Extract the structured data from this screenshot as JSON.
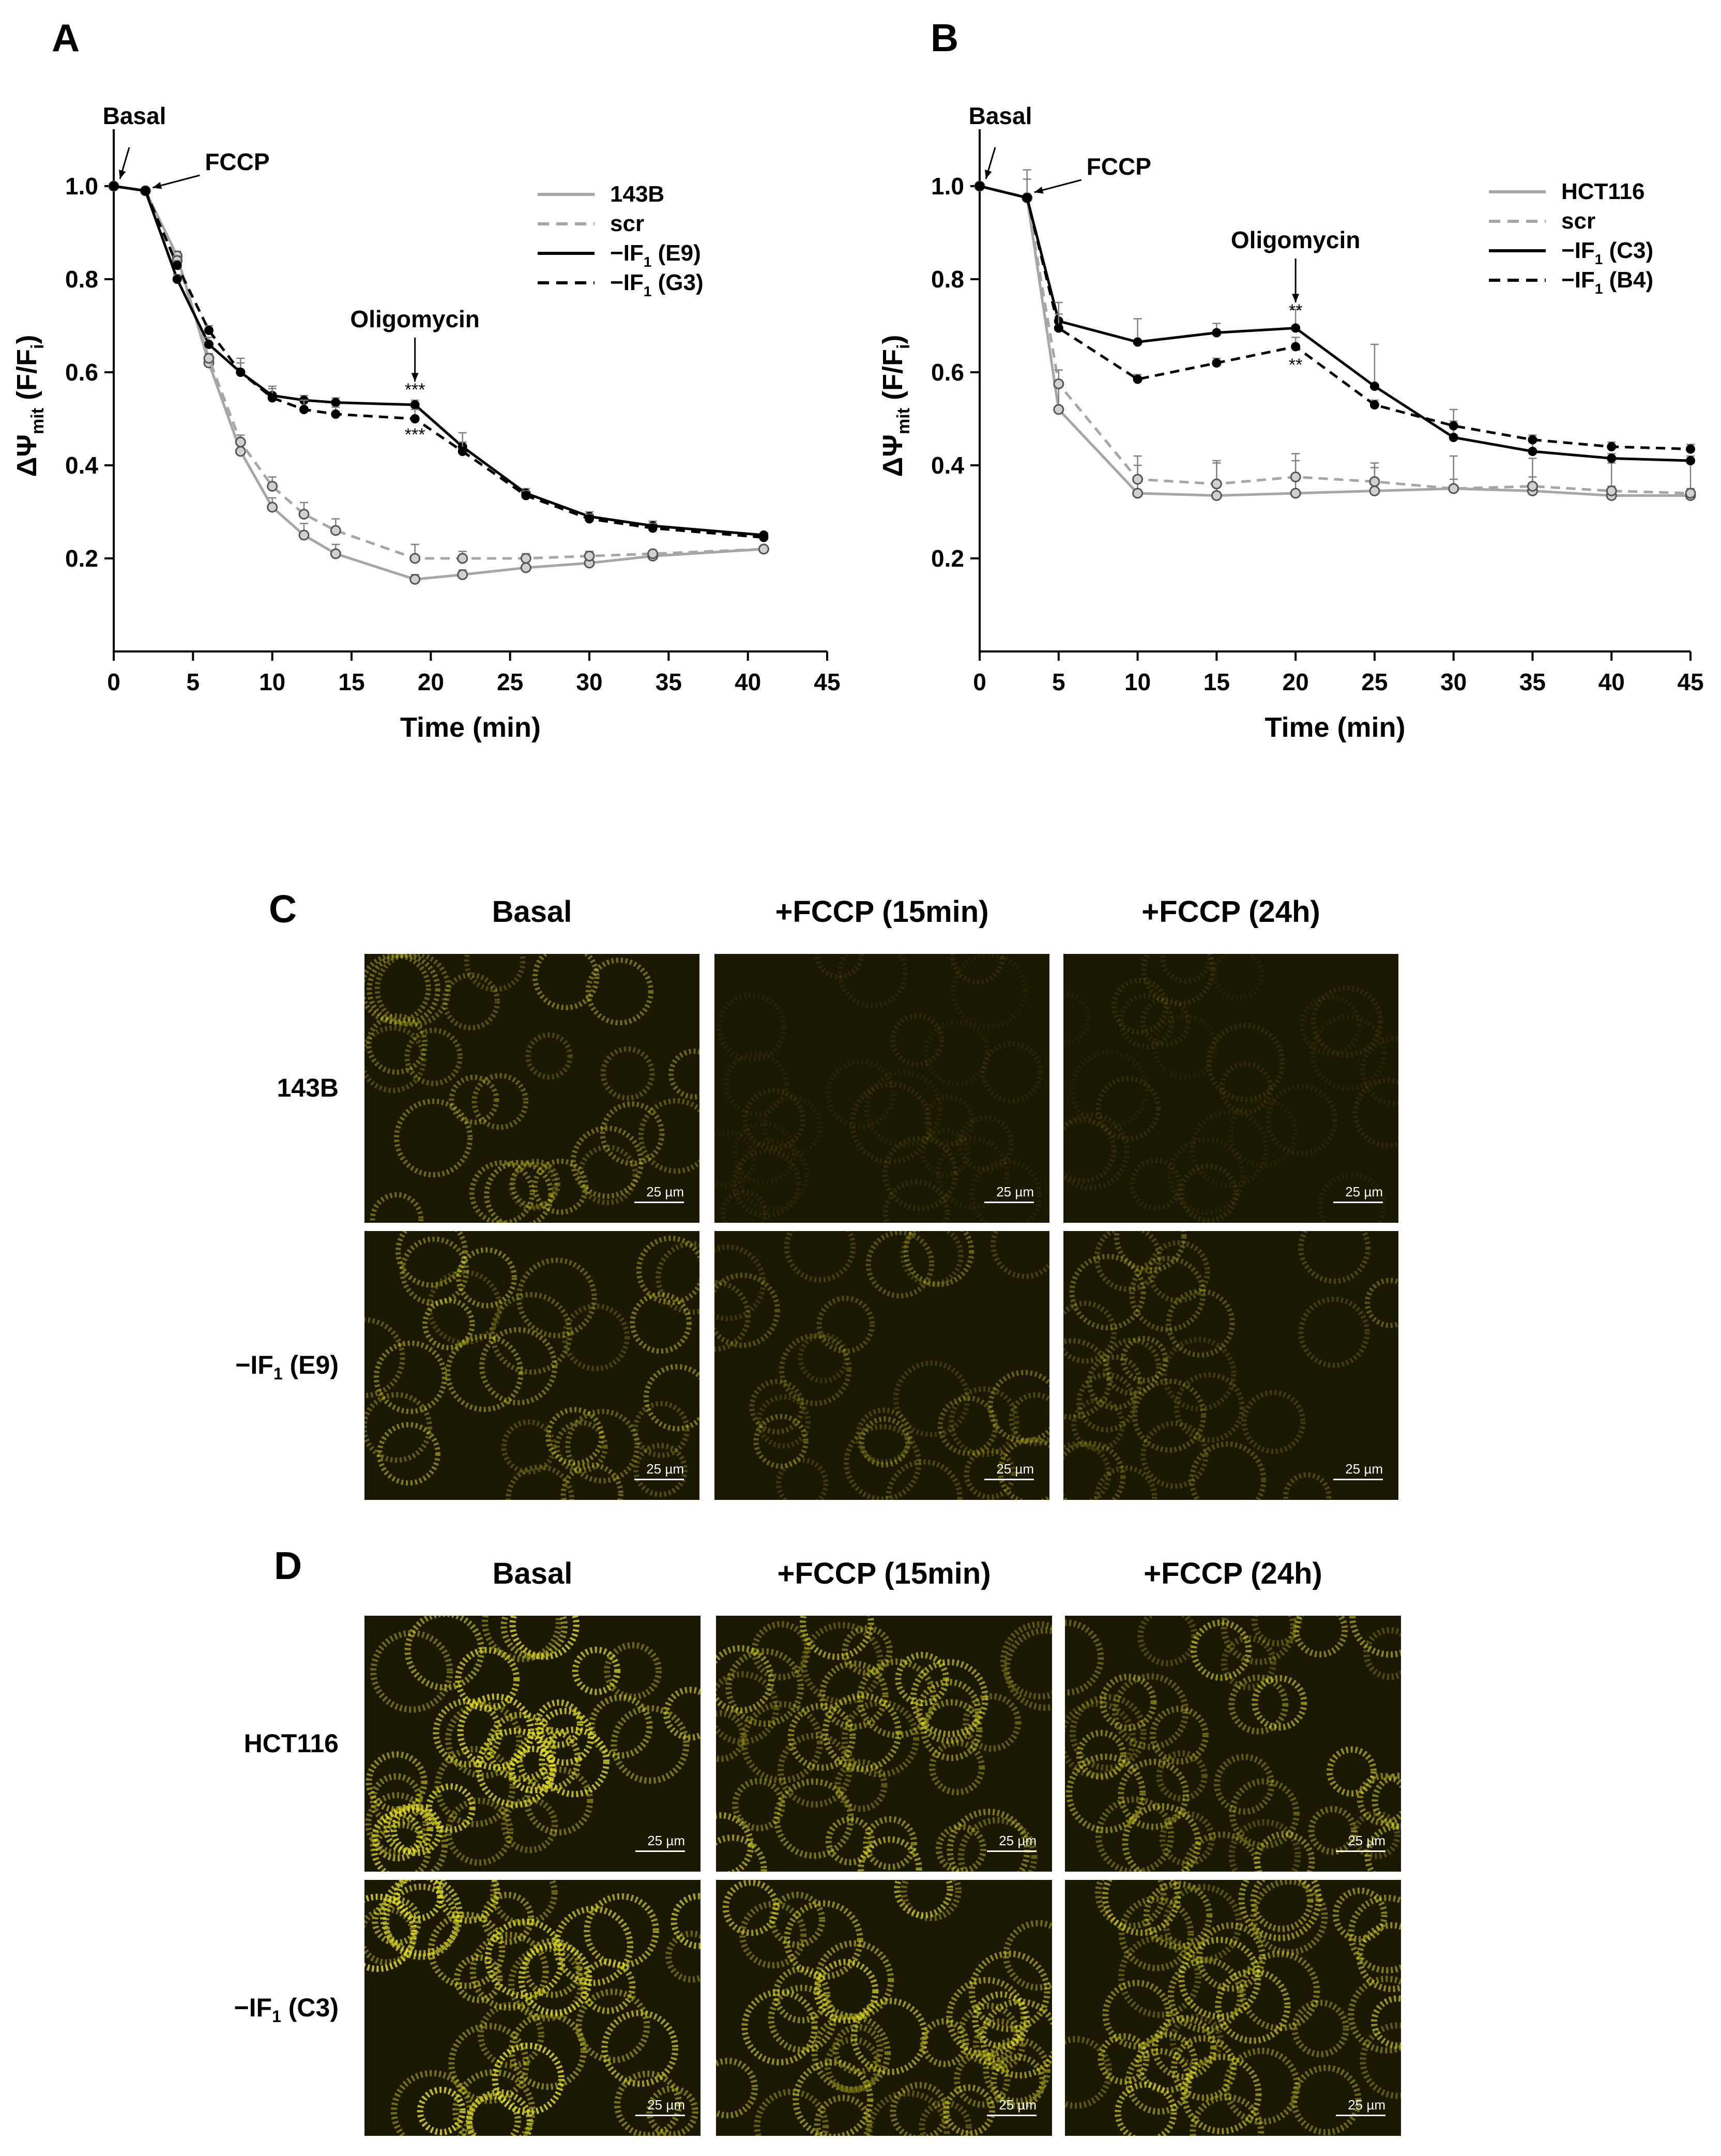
{
  "panel_letters": {
    "a": "A",
    "b": "B",
    "c": "C",
    "d": "D"
  },
  "chart_data": [
    {
      "type": "line",
      "panel": "A",
      "xlabel": "Time (min)",
      "ylabel_main": "ΔΨ",
      "ylabel_sub": "mit",
      "ylabel_rest": "(F/F",
      "ylabel_rest_sub": "i",
      "ylabel_close": ")",
      "xlim": [
        0,
        45
      ],
      "ylim": [
        0.0,
        1.1
      ],
      "x_ticks": [
        0,
        5,
        10,
        15,
        20,
        25,
        30,
        35,
        40,
        45
      ],
      "y_ticks": [
        0.2,
        0.4,
        0.6,
        0.8,
        1.0
      ],
      "y_tick_labels": [
        "0.2",
        "0.4",
        "0.6",
        "0.8",
        "1.0"
      ],
      "legend": [
        {
          "label": "143B",
          "sub": "",
          "tail": "",
          "series": 0
        },
        {
          "label": "scr",
          "sub": "",
          "tail": "",
          "series": 1
        },
        {
          "label": "−IF",
          "sub": "1",
          "tail": " (E9)",
          "series": 2
        },
        {
          "label": "−IF",
          "sub": "1",
          "tail": " (G3)",
          "series": 3
        }
      ],
      "annotations": [
        {
          "text": "Basal",
          "x": 0,
          "y": 1.0
        },
        {
          "text": "FCCP",
          "x": 2,
          "y": 0.99
        },
        {
          "text": "Oligomycin",
          "x": 19,
          "y": 0.53
        }
      ],
      "significance": [
        {
          "text": "***",
          "x": 19,
          "y": 0.53
        },
        {
          "text": "***",
          "x": 19,
          "y": 0.5
        }
      ],
      "series": [
        {
          "name": "143B",
          "color": "#a6a6a6",
          "dash": false,
          "marker": "open",
          "x": [
            0,
            2,
            4,
            6,
            8,
            10,
            12,
            14,
            19,
            22,
            26,
            30,
            34,
            41
          ],
          "y": [
            1.0,
            0.99,
            0.85,
            0.62,
            0.43,
            0.31,
            0.25,
            0.21,
            0.155,
            0.165,
            0.18,
            0.19,
            0.205,
            0.22
          ],
          "err": [
            0,
            0,
            0.01,
            0.01,
            0.015,
            0.02,
            0.025,
            0.02,
            0.01,
            0.01,
            0.005,
            0.005,
            0.005,
            0.005
          ]
        },
        {
          "name": "scr",
          "color": "#a6a6a6",
          "dash": true,
          "marker": "open",
          "x": [
            0,
            2,
            4,
            6,
            8,
            10,
            12,
            14,
            19,
            22,
            26,
            30,
            34,
            41
          ],
          "y": [
            1.0,
            0.99,
            0.84,
            0.63,
            0.45,
            0.355,
            0.295,
            0.26,
            0.2,
            0.2,
            0.2,
            0.205,
            0.21,
            0.22
          ],
          "err": [
            0,
            0,
            0.01,
            0.01,
            0.015,
            0.02,
            0.025,
            0.025,
            0.03,
            0.015,
            0.01,
            0.01,
            0.005,
            0.005
          ]
        },
        {
          "name": "−IF1 (E9)",
          "color": "#000000",
          "dash": false,
          "marker": "filled",
          "x": [
            0,
            2,
            4,
            6,
            8,
            10,
            12,
            14,
            19,
            22,
            26,
            30,
            34,
            41
          ],
          "y": [
            1.0,
            0.99,
            0.8,
            0.66,
            0.6,
            0.55,
            0.54,
            0.535,
            0.53,
            0.44,
            0.34,
            0.29,
            0.27,
            0.25
          ],
          "err": [
            0,
            0,
            0.01,
            0.015,
            0.03,
            0.02,
            0.01,
            0.01,
            0.01,
            0.03,
            0.01,
            0.01,
            0.01,
            0.005
          ]
        },
        {
          "name": "−IF1 (G3)",
          "color": "#000000",
          "dash": true,
          "marker": "filled",
          "x": [
            0,
            2,
            4,
            6,
            8,
            10,
            12,
            14,
            19,
            22,
            26,
            30,
            34,
            41
          ],
          "y": [
            1.0,
            0.99,
            0.83,
            0.69,
            0.6,
            0.545,
            0.52,
            0.51,
            0.5,
            0.43,
            0.335,
            0.285,
            0.265,
            0.245
          ],
          "err": [
            0,
            0,
            0.01,
            0.01,
            0.02,
            0.02,
            0.02,
            0.015,
            0.02,
            0.02,
            0.01,
            0.01,
            0.01,
            0.005
          ]
        }
      ]
    },
    {
      "type": "line",
      "panel": "B",
      "xlabel": "Time (min)",
      "ylabel_main": "ΔΨ",
      "ylabel_sub": "mit",
      "ylabel_rest": "(F/F",
      "ylabel_rest_sub": "i",
      "ylabel_close": ")",
      "xlim": [
        0,
        45
      ],
      "ylim": [
        0.0,
        1.1
      ],
      "x_ticks": [
        0,
        5,
        10,
        15,
        20,
        25,
        30,
        35,
        40,
        45
      ],
      "y_ticks": [
        0.2,
        0.4,
        0.6,
        0.8,
        1.0
      ],
      "y_tick_labels": [
        "0.2",
        "0.4",
        "0.6",
        "0.8",
        "1.0"
      ],
      "legend": [
        {
          "label": "HCT116",
          "sub": "",
          "tail": "",
          "series": 0
        },
        {
          "label": "scr",
          "sub": "",
          "tail": "",
          "series": 1
        },
        {
          "label": "−IF",
          "sub": "1",
          "tail": " (C3)",
          "series": 2
        },
        {
          "label": "−IF",
          "sub": "1",
          "tail": " (B4)",
          "series": 3
        }
      ],
      "annotations": [
        {
          "text": "Basal",
          "x": 0,
          "y": 1.0
        },
        {
          "text": "FCCP",
          "x": 3,
          "y": 0.98
        },
        {
          "text": "Oligomycin",
          "x": 20,
          "y": 0.7
        }
      ],
      "significance": [
        {
          "text": "**",
          "x": 20,
          "y": 0.7
        },
        {
          "text": "**",
          "x": 20,
          "y": 0.65
        }
      ],
      "series": [
        {
          "name": "HCT116",
          "color": "#a6a6a6",
          "dash": false,
          "marker": "open",
          "x": [
            0,
            3,
            5,
            10,
            15,
            20,
            25,
            30,
            35,
            40,
            45
          ],
          "y": [
            1.0,
            0.975,
            0.52,
            0.34,
            0.335,
            0.34,
            0.345,
            0.35,
            0.345,
            0.335,
            0.335
          ],
          "err": [
            0,
            0,
            0.05,
            0.06,
            0.07,
            0.07,
            0.06,
            0.07,
            0.07,
            0.07,
            0.07
          ]
        },
        {
          "name": "scr",
          "color": "#a6a6a6",
          "dash": true,
          "marker": "open",
          "x": [
            0,
            3,
            5,
            10,
            15,
            20,
            25,
            30,
            35,
            40,
            45
          ],
          "y": [
            1.0,
            0.975,
            0.575,
            0.37,
            0.36,
            0.375,
            0.365,
            0.35,
            0.355,
            0.345,
            0.34
          ],
          "err": [
            0,
            0,
            0.03,
            0.05,
            0.05,
            0.05,
            0.03,
            0.02,
            0.02,
            0.01,
            0.01
          ]
        },
        {
          "name": "−IF1 (C3)",
          "color": "#000000",
          "dash": false,
          "marker": "filled",
          "x": [
            0,
            3,
            5,
            10,
            15,
            20,
            25,
            30,
            35,
            40,
            45
          ],
          "y": [
            1.0,
            0.975,
            0.71,
            0.665,
            0.685,
            0.695,
            0.57,
            0.46,
            0.43,
            0.415,
            0.41
          ],
          "err": [
            0,
            0.06,
            0.04,
            0.05,
            0.02,
            0.04,
            0.09,
            0.06,
            0.02,
            0.01,
            0.01
          ]
        },
        {
          "name": "−IF1 (B4)",
          "color": "#000000",
          "dash": true,
          "marker": "filled",
          "x": [
            0,
            3,
            5,
            10,
            15,
            20,
            25,
            30,
            35,
            40,
            45
          ],
          "y": [
            1.0,
            0.975,
            0.695,
            0.585,
            0.62,
            0.655,
            0.53,
            0.485,
            0.455,
            0.44,
            0.435
          ],
          "err": [
            0,
            0.04,
            0.03,
            0.01,
            0.01,
            0.02,
            0.01,
            0.01,
            0.01,
            0.01,
            0.01
          ]
        }
      ]
    }
  ],
  "panel_c": {
    "columns": [
      "Basal",
      "+FCCP (15min)",
      "+FCCP (24h)"
    ],
    "rows": [
      {
        "label": "143B",
        "sub": "",
        "tail": ""
      },
      {
        "label": "−IF",
        "sub": "1",
        "tail": " (E9)"
      }
    ],
    "scale_bar": "25 µm",
    "brightness": [
      [
        0.55,
        0.12,
        0.12
      ],
      [
        0.6,
        0.45,
        0.42
      ]
    ]
  },
  "panel_d": {
    "columns": [
      "Basal",
      "+FCCP (15min)",
      "+FCCP (24h)"
    ],
    "rows": [
      {
        "label": "HCT116",
        "sub": "",
        "tail": ""
      },
      {
        "label": "−IF",
        "sub": "1",
        "tail": " (C3)"
      }
    ],
    "scale_bar": "25 µm",
    "brightness": [
      [
        1.0,
        0.75,
        0.7
      ],
      [
        1.0,
        0.85,
        0.8
      ]
    ]
  },
  "colors": {
    "control": "#a6a6a6",
    "knockdown": "#000000",
    "fluorescence": "#e6e020",
    "micro_bg": "#1a1800"
  }
}
